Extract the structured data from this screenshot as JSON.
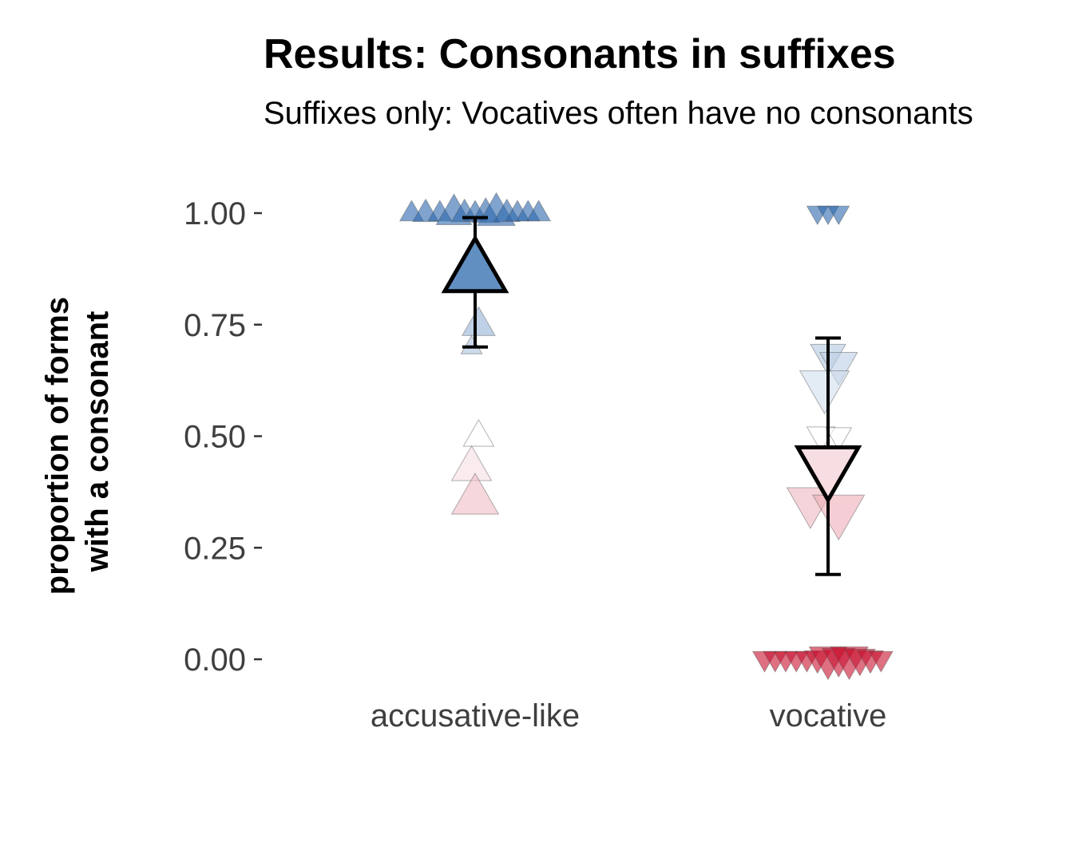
{
  "chart_data": {
    "type": "scatter",
    "title": "Results: Consonants in suffixes",
    "subtitle": "Suffixes only: Vocatives often have no consonants",
    "ylabel_lines": [
      "proportion of forms",
      "with a consonant"
    ],
    "categories": [
      "accusative-like",
      "vocative"
    ],
    "ylim": [
      0,
      1
    ],
    "yticks": [
      {
        "value": 0,
        "label": "0.00"
      },
      {
        "value": 0.25,
        "label": "0.25"
      },
      {
        "value": 0.5,
        "label": "0.50"
      },
      {
        "value": 0.75,
        "label": "0.75"
      },
      {
        "value": 1,
        "label": "1.00"
      }
    ],
    "grid": false,
    "legend": "none",
    "color_scale": {
      "low": "#c8102e",
      "mid": "#ffffff",
      "high": "#2b67ad"
    },
    "series": [
      {
        "category": "accusative-like",
        "marker": "triangle-up",
        "mean": 0.87,
        "ci": [
          0.7,
          0.99
        ],
        "points": [
          {
            "value": 1.0,
            "dx": -0.18,
            "size": 1.0
          },
          {
            "value": 1.0,
            "dx": -0.14,
            "size": 1.1
          },
          {
            "value": 1.0,
            "dx": -0.1,
            "size": 1.0
          },
          {
            "value": 1.0,
            "dx": -0.06,
            "size": 1.5
          },
          {
            "value": 1.0,
            "dx": -0.03,
            "size": 1.1
          },
          {
            "value": 1.0,
            "dx": 0.0,
            "size": 1.0
          },
          {
            "value": 1.0,
            "dx": 0.03,
            "size": 1.2
          },
          {
            "value": 1.0,
            "dx": 0.06,
            "size": 1.6
          },
          {
            "value": 1.0,
            "dx": 0.09,
            "size": 1.1
          },
          {
            "value": 1.0,
            "dx": 0.12,
            "size": 1.0
          },
          {
            "value": 1.0,
            "dx": 0.15,
            "size": 1.0
          },
          {
            "value": 1.0,
            "dx": 0.18,
            "size": 1.0
          },
          {
            "value": 0.75,
            "dx": 0.01,
            "size": 1.4
          },
          {
            "value": 0.7,
            "dx": -0.01,
            "size": 0.9
          },
          {
            "value": 0.5,
            "dx": 0.01,
            "size": 1.3
          },
          {
            "value": 0.43,
            "dx": -0.01,
            "size": 1.7
          },
          {
            "value": 0.36,
            "dx": 0.0,
            "size": 2.0
          }
        ]
      },
      {
        "category": "vocative",
        "marker": "triangle-down",
        "mean": 0.43,
        "ci": [
          0.19,
          0.72
        ],
        "points": [
          {
            "value": 1.0,
            "dx": -0.03,
            "size": 0.9
          },
          {
            "value": 1.0,
            "dx": 0.0,
            "size": 0.9
          },
          {
            "value": 1.0,
            "dx": 0.03,
            "size": 0.9
          },
          {
            "value": 0.68,
            "dx": 0.0,
            "size": 1.5
          },
          {
            "value": 0.66,
            "dx": 0.03,
            "size": 1.6
          },
          {
            "value": 0.61,
            "dx": -0.01,
            "size": 2.1
          },
          {
            "value": 0.5,
            "dx": -0.02,
            "size": 1.2
          },
          {
            "value": 0.5,
            "dx": 0.03,
            "size": 1.1
          },
          {
            "value": 0.35,
            "dx": -0.05,
            "size": 2.0
          },
          {
            "value": 0.33,
            "dx": 0.03,
            "size": 2.2
          },
          {
            "value": 0.0,
            "dx": -0.18,
            "size": 1.0
          },
          {
            "value": 0.0,
            "dx": -0.15,
            "size": 1.0
          },
          {
            "value": 0.0,
            "dx": -0.12,
            "size": 1.0
          },
          {
            "value": 0.0,
            "dx": -0.09,
            "size": 1.0
          },
          {
            "value": 0.0,
            "dx": -0.06,
            "size": 1.0
          },
          {
            "value": 0.0,
            "dx": -0.03,
            "size": 1.1
          },
          {
            "value": 0.0,
            "dx": 0.0,
            "size": 1.6
          },
          {
            "value": 0.0,
            "dx": 0.03,
            "size": 1.4
          },
          {
            "value": 0.0,
            "dx": 0.06,
            "size": 1.6
          },
          {
            "value": 0.0,
            "dx": 0.09,
            "size": 1.3
          },
          {
            "value": 0.0,
            "dx": 0.12,
            "size": 1.1
          },
          {
            "value": 0.0,
            "dx": 0.15,
            "size": 1.0
          }
        ]
      }
    ]
  }
}
